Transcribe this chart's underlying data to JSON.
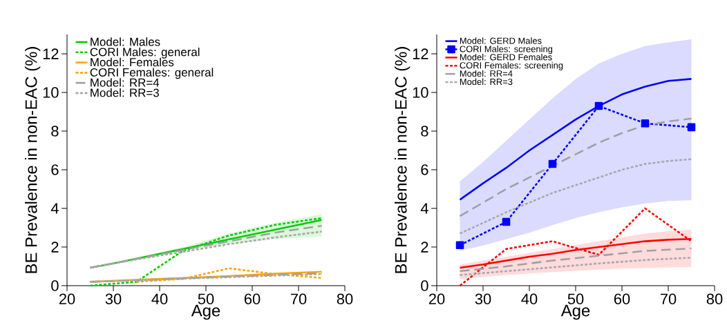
{
  "chart_data": [
    {
      "type": "line",
      "xlabel": "Age",
      "ylabel": "BE Prevalence in non-EAC (%)",
      "xlim": [
        20,
        80
      ],
      "ylim": [
        0,
        13
      ],
      "xticks": [
        20,
        30,
        40,
        50,
        60,
        70,
        80
      ],
      "yticks": [
        0,
        2,
        4,
        6,
        8,
        10,
        12
      ],
      "grid": false,
      "legend": "top left",
      "series": [
        {
          "name": "Model: Males",
          "color": "#00cc00",
          "line_style": "solid",
          "x": [
            25,
            30,
            35,
            40,
            45,
            50,
            55,
            60,
            65,
            70,
            75
          ],
          "values": [
            0.93,
            1.15,
            1.4,
            1.65,
            1.9,
            2.15,
            2.4,
            2.65,
            2.9,
            3.15,
            3.4
          ],
          "lower": [
            0.9,
            1.12,
            1.35,
            1.58,
            1.8,
            1.98,
            2.15,
            2.28,
            2.4,
            2.48,
            2.55
          ],
          "upper": [
            0.96,
            1.2,
            1.45,
            1.72,
            2.0,
            2.35,
            2.7,
            3.0,
            3.25,
            3.48,
            3.7
          ]
        },
        {
          "name": "CORI Males: general",
          "color": "#00cc00",
          "line_style": "dotted",
          "x": [
            25,
            35,
            45,
            55,
            65,
            75
          ],
          "values": [
            0,
            0.2,
            1.8,
            2.6,
            3.15,
            3.5
          ]
        },
        {
          "name": "Model: Females",
          "color": "#ffa500",
          "line_style": "solid",
          "x": [
            25,
            35,
            45,
            55,
            65,
            75
          ],
          "values": [
            0.2,
            0.3,
            0.4,
            0.5,
            0.62,
            0.72
          ]
        },
        {
          "name": "CORI Females: general",
          "color": "#ffa500",
          "line_style": "dotted",
          "x": [
            35,
            45,
            55,
            65,
            75
          ],
          "values": [
            0.2,
            0.35,
            0.9,
            0.6,
            0.4
          ]
        },
        {
          "name": "Model: RR=4",
          "color": "#a0a0a0",
          "line_style": "dashed",
          "x": [
            25,
            35,
            45,
            55,
            65,
            75
          ],
          "values": [
            0.93,
            1.38,
            1.85,
            2.3,
            2.75,
            3.1
          ]
        },
        {
          "name": "Model: RR=3",
          "color": "#a8a8a8",
          "line_style": "dotted",
          "x": [
            25,
            35,
            45,
            55,
            65,
            75
          ],
          "values": [
            0.93,
            1.36,
            1.75,
            2.15,
            2.5,
            2.8
          ]
        },
        {
          "color": "#a0a0a0",
          "line_style": "dashed",
          "x": [
            25,
            35,
            45,
            55,
            65,
            75
          ],
          "values": [
            0.2,
            0.28,
            0.38,
            0.47,
            0.56,
            0.65
          ]
        },
        {
          "color": "#a8a8a8",
          "line_style": "dotted",
          "x": [
            25,
            35,
            45,
            55,
            65,
            75
          ],
          "values": [
            0.2,
            0.27,
            0.36,
            0.44,
            0.52,
            0.6
          ]
        }
      ]
    },
    {
      "type": "line",
      "xlabel": "Age",
      "ylabel": "BE Prevalence in non-EAC (%)",
      "xlim": [
        20,
        80
      ],
      "ylim": [
        0,
        13
      ],
      "xticks": [
        20,
        30,
        40,
        50,
        60,
        70,
        80
      ],
      "yticks": [
        0,
        2,
        4,
        6,
        8,
        10,
        12
      ],
      "grid": false,
      "legend": "top left",
      "series": [
        {
          "name": "Model: GERD Males",
          "color": "#0000ff",
          "line_style": "solid",
          "x": [
            25,
            30,
            35,
            40,
            45,
            50,
            55,
            60,
            65,
            70,
            75
          ],
          "values": [
            4.45,
            5.3,
            6.1,
            7.0,
            7.8,
            8.6,
            9.3,
            9.9,
            10.3,
            10.6,
            10.7
          ],
          "lower": [
            1.8,
            2.08,
            2.41,
            2.74,
            3.13,
            3.5,
            3.8,
            4.05,
            4.25,
            4.38,
            4.42
          ],
          "upper": [
            5.4,
            6.4,
            7.5,
            8.6,
            9.7,
            10.7,
            11.5,
            12.0,
            12.4,
            12.6,
            12.75
          ]
        },
        {
          "name": "CORI Males: screening",
          "color": "#0000ff",
          "line_style": "dotted",
          "marker": "square",
          "x": [
            25,
            35,
            45,
            55,
            65,
            75
          ],
          "values": [
            2.1,
            3.3,
            6.3,
            9.3,
            8.4,
            8.2
          ]
        },
        {
          "name": "Model: GERD Females",
          "color": "#ff0000",
          "line_style": "solid",
          "x": [
            25,
            30,
            35,
            40,
            45,
            50,
            55,
            60,
            65,
            70,
            75
          ],
          "values": [
            0.93,
            1.1,
            1.3,
            1.5,
            1.65,
            1.85,
            2.0,
            2.15,
            2.3,
            2.38,
            2.42
          ],
          "lower": [
            0.35,
            0.45,
            0.55,
            0.63,
            0.7,
            0.77,
            0.83,
            0.88,
            0.92,
            0.95,
            0.97
          ],
          "upper": [
            1.1,
            1.3,
            1.5,
            1.7,
            1.9,
            2.1,
            2.3,
            2.5,
            2.7,
            2.82,
            2.9
          ]
        },
        {
          "name": "CORI Females: screening",
          "color": "#ff0000",
          "line_style": "dotted",
          "x": [
            25,
            35,
            45,
            55,
            65,
            75
          ],
          "values": [
            0,
            1.9,
            2.3,
            1.6,
            4.0,
            2.3
          ]
        },
        {
          "name": "Model: RR=4",
          "color": "#a0a0a8",
          "line_style": "dashed",
          "x": [
            25,
            30,
            35,
            40,
            45,
            50,
            55,
            60,
            65,
            70,
            75
          ],
          "values": [
            3.6,
            4.3,
            5.0,
            5.6,
            6.2,
            6.8,
            7.4,
            7.9,
            8.3,
            8.5,
            8.65
          ]
        },
        {
          "name": "Model: RR=3",
          "color": "#a8a8b0",
          "line_style": "dotted",
          "x": [
            25,
            30,
            35,
            40,
            45,
            50,
            55,
            60,
            65,
            70,
            75
          ],
          "values": [
            2.7,
            3.25,
            3.8,
            4.3,
            4.8,
            5.2,
            5.6,
            6.0,
            6.3,
            6.45,
            6.55
          ]
        },
        {
          "color": "#a0a0a8",
          "line_style": "dashed",
          "x": [
            25,
            35,
            45,
            55,
            65,
            75
          ],
          "values": [
            0.75,
            1.0,
            1.3,
            1.55,
            1.8,
            1.93
          ]
        },
        {
          "color": "#a8a8b0",
          "line_style": "dotted",
          "x": [
            25,
            35,
            45,
            55,
            65,
            75
          ],
          "values": [
            0.55,
            0.75,
            0.95,
            1.15,
            1.33,
            1.45
          ]
        }
      ]
    }
  ]
}
